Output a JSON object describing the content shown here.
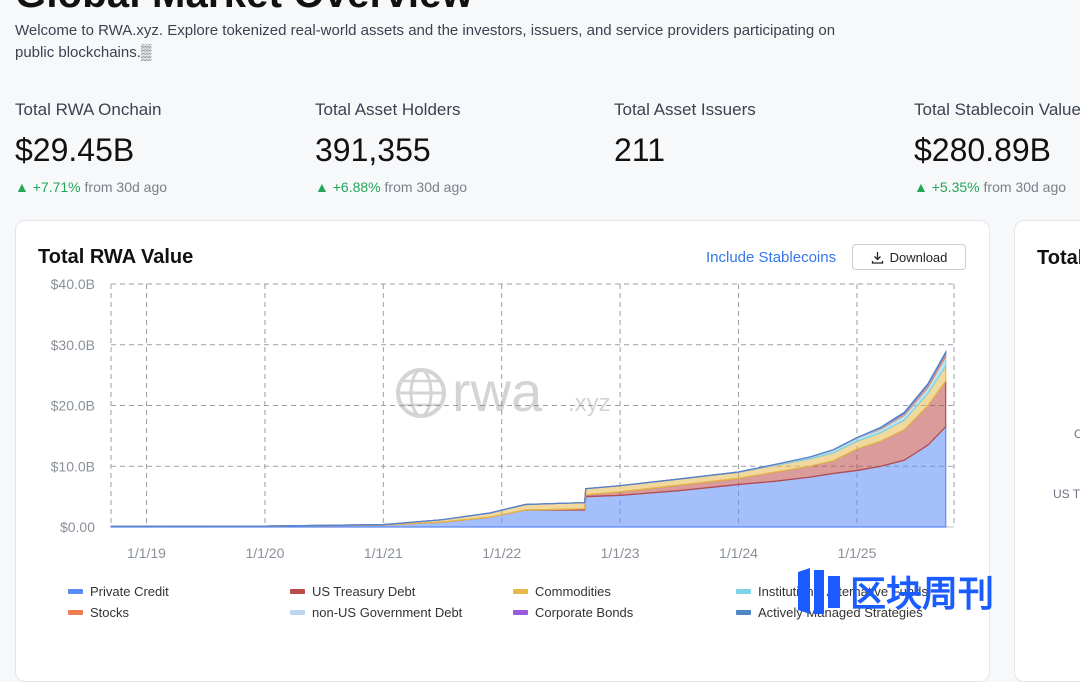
{
  "page": {
    "title": "Global Market Overview",
    "intro": "Welcome to RWA.xyz. Explore tokenized real-world assets and the investors, issuers, and service providers participating on public blockchains.▒"
  },
  "stats": [
    {
      "label": "Total RWA Onchain",
      "value": "$29.45B",
      "arrow": "▲",
      "change": "+7.71%",
      "suffix": "from 30d ago"
    },
    {
      "label": "Total Asset Holders",
      "value": "391,355",
      "arrow": "▲",
      "change": "+6.88%",
      "suffix": "from 30d ago"
    },
    {
      "label": "Total Asset Issuers",
      "value": "211",
      "arrow": "",
      "change": "",
      "suffix": ""
    },
    {
      "label": "Total Stablecoin Value",
      "value": "$280.89B",
      "arrow": "▲",
      "change": "+5.35%",
      "suffix": "from 30d ago"
    }
  ],
  "card": {
    "title": "Total RWA Value",
    "toggle_label": "Include Stablecoins",
    "download_label": "Download",
    "download_icon": "download-icon"
  },
  "side_card": {
    "title": "Total",
    "label_1": "C",
    "label_2": "US Tr"
  },
  "watermark": {
    "name": "rwa",
    "suffix": ".xyz",
    "icon": "globe-icon"
  },
  "overlay_logo": {
    "text": "区块周刊",
    "color": "#1a5cff"
  },
  "chart_data": {
    "type": "area",
    "stacked": true,
    "title": "Total RWA Value",
    "x_ticks": [
      "1/1/19",
      "1/1/20",
      "1/1/21",
      "1/1/22",
      "1/1/23",
      "1/1/24",
      "1/1/25"
    ],
    "y_ticks": [
      "$0.00",
      "$10.0B",
      "$20.0B",
      "$30.0B",
      "$40.0B"
    ],
    "ylim": [
      0,
      40
    ],
    "y_unit": "$B",
    "grid": true,
    "legend_position": "bottom",
    "x": [
      2018.7,
      2019.0,
      2020.0,
      2021.0,
      2021.5,
      2021.9,
      2022.2,
      2022.5,
      2022.7,
      2022.71,
      2023.0,
      2023.5,
      2024.0,
      2024.3,
      2024.6,
      2024.8,
      2025.0,
      2025.2,
      2025.4,
      2025.6,
      2025.75
    ],
    "series": [
      {
        "name": "Private Credit",
        "color": "#5b8af5",
        "values": [
          0.1,
          0.1,
          0.15,
          0.3,
          0.8,
          1.6,
          2.8,
          2.8,
          2.8,
          5.0,
          5.2,
          6.0,
          7.0,
          7.5,
          8.2,
          8.8,
          9.3,
          10.0,
          11.0,
          13.5,
          16.5
        ]
      },
      {
        "name": "US Treasury Debt",
        "color": "#b94a48",
        "values": [
          0,
          0,
          0,
          0,
          0,
          0,
          0,
          0.1,
          0.2,
          0.3,
          0.6,
          0.9,
          1.0,
          1.5,
          1.8,
          2.1,
          3.5,
          4.1,
          5.0,
          6.5,
          7.5
        ]
      },
      {
        "name": "Commodities",
        "color": "#e6b84a",
        "values": [
          0,
          0,
          0,
          0.1,
          0.4,
          0.7,
          0.9,
          1.0,
          1.0,
          1.0,
          1.0,
          1.0,
          1.0,
          1.1,
          1.2,
          1.3,
          1.3,
          1.4,
          1.6,
          2.0,
          2.5
        ]
      },
      {
        "name": "Institutional Alternative Funds",
        "color": "#7dd3ea",
        "values": [
          0,
          0,
          0,
          0,
          0,
          0,
          0,
          0,
          0,
          0,
          0,
          0,
          0,
          0.1,
          0.2,
          0.4,
          0.5,
          0.6,
          0.8,
          1.0,
          1.6
        ]
      },
      {
        "name": "Stocks",
        "color": "#f07d4f",
        "values": [
          0,
          0,
          0,
          0,
          0,
          0,
          0,
          0,
          0,
          0,
          0,
          0,
          0,
          0,
          0,
          0,
          0,
          0.1,
          0.2,
          0.3,
          0.4
        ]
      },
      {
        "name": "non-US Government Debt",
        "color": "#bcd6ee",
        "values": [
          0,
          0,
          0,
          0,
          0,
          0,
          0,
          0,
          0,
          0,
          0,
          0,
          0.05,
          0.05,
          0.1,
          0.1,
          0.1,
          0.1,
          0.1,
          0.1,
          0.1
        ]
      },
      {
        "name": "Corporate Bonds",
        "color": "#9b59e0",
        "values": [
          0,
          0,
          0,
          0,
          0,
          0,
          0,
          0,
          0,
          0,
          0,
          0,
          0,
          0,
          0,
          0,
          0,
          0.05,
          0.1,
          0.1,
          0.1
        ]
      },
      {
        "name": "Actively Managed Strategies",
        "color": "#4f86c6",
        "values": [
          0,
          0,
          0,
          0,
          0,
          0,
          0,
          0,
          0,
          0,
          0,
          0,
          0,
          0,
          0,
          0,
          0,
          0.05,
          0.1,
          0.1,
          0.1
        ]
      }
    ],
    "legend": [
      "Private Credit",
      "US Treasury Debt",
      "Commodities",
      "Institutional Alternative Funds",
      "Stocks",
      "non-US Government Debt",
      "Corporate Bonds",
      "Actively Managed Strategies"
    ]
  }
}
